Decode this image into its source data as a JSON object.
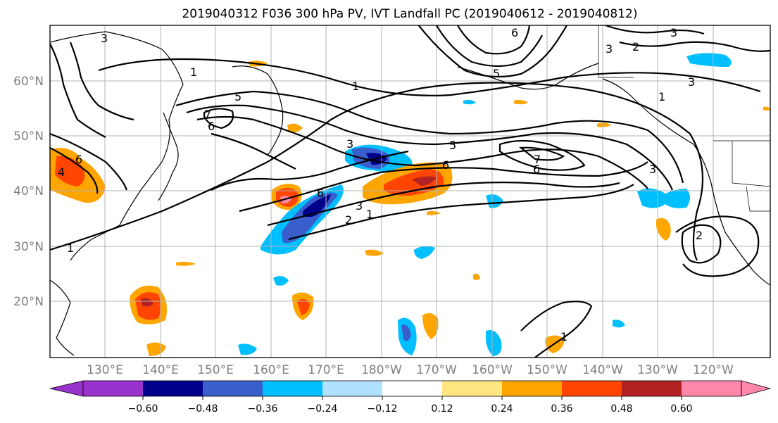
{
  "title": "2019040312 F036 300 hPa PV, IVT Landfall PC (2019040612 - 2019040812)",
  "lat_labels": [
    "60°N",
    "50°N",
    "40°N",
    "30°N",
    "20°N"
  ],
  "lon_labels": [
    "130°E",
    "140°E",
    "150°E",
    "160°E",
    "170°E",
    "180°W",
    "170°W",
    "160°W",
    "150°W",
    "140°W",
    "130°W",
    "120°W"
  ],
  "colorbar": {
    "ticks": [
      "−0.60",
      "−0.48",
      "−0.36",
      "−0.24",
      "−0.12",
      "0.12",
      "0.24",
      "0.36",
      "0.48",
      "0.60"
    ],
    "colors": [
      "#9932cc",
      "#00008b",
      "#3a5fcd",
      "#00bfff",
      "#b0e2ff",
      "#ffffff",
      "#ffe680",
      "#ffa500",
      "#ff4500",
      "#b22222",
      "#ff88aa"
    ]
  },
  "contour_labels": [
    "3",
    "1",
    "6",
    "5",
    "7",
    "6",
    "4",
    "3",
    "1",
    "3",
    "6",
    "2",
    "1",
    "5",
    "7",
    "6",
    "3",
    "1",
    "2",
    "3",
    "1",
    "3",
    "6",
    "5",
    "1",
    "6",
    "3",
    "2"
  ]
}
